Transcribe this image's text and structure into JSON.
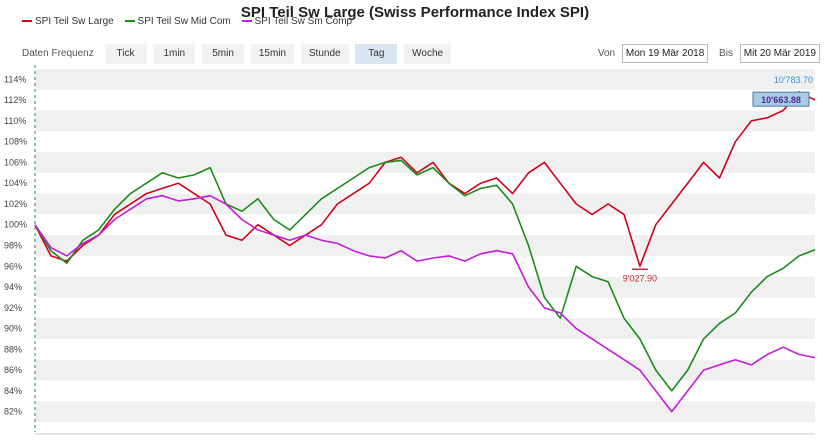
{
  "title": "SPI Teil Sw Large (Swiss Performance Index SPI)",
  "legend": [
    {
      "name": "SPI Teil Sw Large",
      "color": "#d0021b"
    },
    {
      "name": "SPI Teil Sw Mid Com",
      "color": "#1a8c1a"
    },
    {
      "name": "SPI Teil Sw Sm Comp",
      "color": "#c41ed9"
    }
  ],
  "toolbar": {
    "label": "Daten Frequenz",
    "buttons": [
      "Tick",
      "1min",
      "5min",
      "15min",
      "Stunde",
      "Tag",
      "Woche"
    ],
    "active": "Tag"
  },
  "range": {
    "from_label": "Von",
    "from_value": "Mon 19 Mär 2018",
    "to_label": "Bis",
    "to_value": "Mit 20 Mär 2019"
  },
  "chart_data": {
    "type": "line",
    "ylim": [
      81,
      115
    ],
    "yticks": [
      "82%",
      "84%",
      "86%",
      "88%",
      "90%",
      "92%",
      "94%",
      "96%",
      "98%",
      "100%",
      "102%",
      "104%",
      "106%",
      "108%",
      "110%",
      "112%",
      "114%"
    ],
    "series": [
      {
        "name": "SPI Teil Sw Large",
        "color": "#d0021b",
        "values": [
          100,
          97,
          96.5,
          98,
          99,
          101,
          102,
          103,
          103.5,
          104,
          103,
          102,
          99,
          98.5,
          100,
          99,
          98,
          99,
          100,
          102,
          103,
          104,
          106,
          106.5,
          105,
          106,
          104,
          103,
          104,
          104.5,
          103,
          105,
          106,
          104,
          102,
          101,
          102,
          101,
          96,
          100,
          102,
          104,
          106,
          104.5,
          108,
          110,
          110.3,
          111,
          112.8,
          112
        ]
      },
      {
        "name": "SPI Teil Sw Mid Com",
        "color": "#1a8c1a",
        "values": [
          100,
          97.5,
          96.3,
          98.5,
          99.5,
          101.5,
          103,
          104,
          105,
          104.5,
          104.8,
          105.5,
          102,
          101.3,
          102.5,
          100.5,
          99.5,
          101,
          102.5,
          103.5,
          104.5,
          105.5,
          106,
          106.2,
          104.8,
          105.5,
          104,
          102.8,
          103.5,
          103.8,
          102,
          98,
          93,
          91,
          96,
          95,
          94.5,
          91,
          89,
          86,
          84,
          86,
          89,
          90.5,
          91.5,
          93.5,
          95,
          95.8,
          97,
          97.6
        ]
      },
      {
        "name": "SPI Teil Sw Sm Comp",
        "color": "#c41ed9",
        "values": [
          100,
          97.8,
          97,
          98.2,
          99,
          100.5,
          101.5,
          102.5,
          102.8,
          102.3,
          102.5,
          102.8,
          102,
          100.5,
          99.5,
          99,
          98.5,
          99,
          98.5,
          98.2,
          97.5,
          97,
          96.8,
          97.5,
          96.5,
          96.8,
          97,
          96.5,
          97.2,
          97.5,
          97.2,
          94,
          92,
          91.5,
          90,
          89,
          88,
          87,
          86,
          84,
          82,
          84,
          86,
          86.5,
          87,
          86.5,
          87.5,
          88.2,
          87.5,
          87.2
        ]
      }
    ],
    "annotations": [
      {
        "label": "10'783.70",
        "color": "#3399cc"
      },
      {
        "label": "10'663.88",
        "color": "#4b2b8f"
      },
      {
        "label": "9'027.90",
        "color": "#c03030"
      }
    ]
  }
}
